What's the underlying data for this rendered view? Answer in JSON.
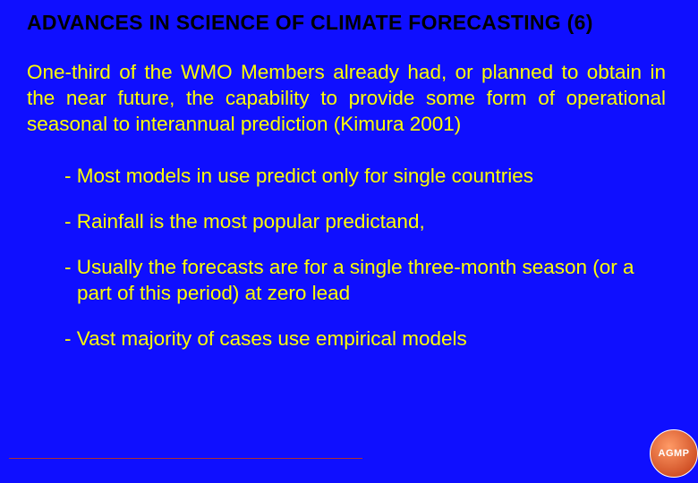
{
  "slide": {
    "background_color": "#0f0fff",
    "title": {
      "text": "ADVANCES IN SCIENCE OF CLIMATE FORECASTING (6)",
      "color": "#000000",
      "fontsize": 23,
      "fontweight": "bold"
    },
    "intro": {
      "text": "One-third of the WMO Members already had, or planned to obtain in the near future, the capability to provide some form of operational seasonal to interannual prediction (Kimura 2001)",
      "color": "#ffff00",
      "fontsize": 22.5,
      "align": "justify"
    },
    "bullets": [
      "- Most models in use predict only for single countries",
      "- Rainfall is the most popular predictand,",
      "- Usually the forecasts are for a single three-month season (or a part of this period) at zero lead",
      "- Vast majority of cases use empirical models"
    ],
    "bullet_color": "#ffff00",
    "bullet_fontsize": 22.5,
    "footer_line_color": "#b03030",
    "badge": {
      "text": "AGMP",
      "text_color": "#ffffff",
      "bg_gradient_inner": "#ff9a66",
      "bg_gradient_outer": "#cc4a20",
      "border_color": "#ffffff"
    }
  }
}
